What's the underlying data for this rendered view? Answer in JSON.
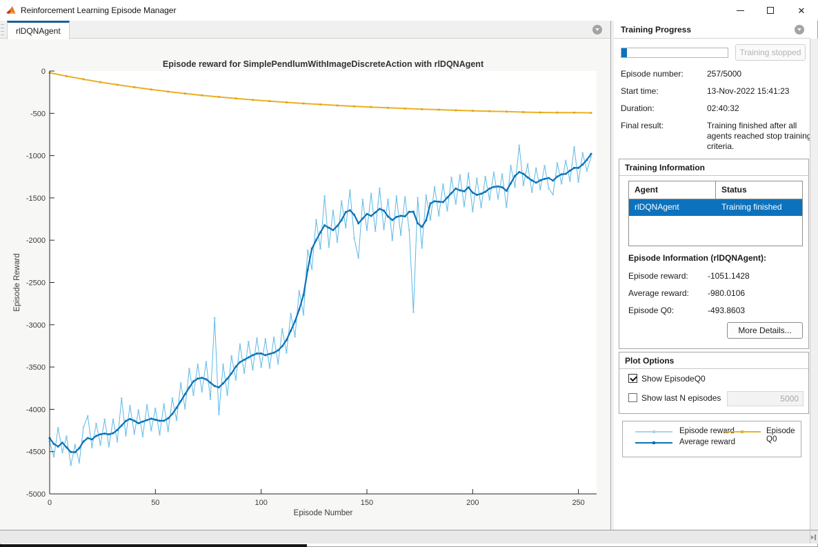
{
  "window": {
    "title": "Reinforcement Learning Episode Manager"
  },
  "tab": {
    "label": "rlDQNAgent"
  },
  "right_panel": {
    "header": "Training Progress",
    "progress": {
      "value": 257,
      "max": 5000
    },
    "stop_button": "Training stopped",
    "info_rows": [
      {
        "label": "Episode number:",
        "value": "257/5000"
      },
      {
        "label": "Start time:",
        "value": "13-Nov-2022 15:41:23"
      },
      {
        "label": "Duration:",
        "value": "02:40:32"
      },
      {
        "label": "Final result:",
        "value": "Training finished after all agents reached stop training criteria."
      }
    ],
    "training_information": {
      "title": "Training Information",
      "table": {
        "headers": [
          "Agent",
          "Status"
        ],
        "rows": [
          [
            "rlDQNAgent",
            "Training finished"
          ]
        ]
      },
      "episode_info_title": "Episode Information (rlDQNAgent):",
      "stats": [
        {
          "label": "Episode reward:",
          "value": "-1051.1428"
        },
        {
          "label": "Average reward:",
          "value": "-980.0106"
        },
        {
          "label": "Episode Q0:",
          "value": "-493.8603"
        }
      ],
      "more_details_button": "More Details..."
    },
    "plot_options": {
      "title": "Plot Options",
      "show_episode_q0": {
        "label": "Show EpisodeQ0",
        "checked": true
      },
      "show_last_n": {
        "label": "Show last N episodes",
        "checked": false,
        "value": "5000"
      }
    },
    "legend": [
      {
        "label": "Episode reward",
        "color": "#A9D5EF"
      },
      {
        "label": "Average reward",
        "color": "#0B72B5"
      },
      {
        "label": "Episode Q0",
        "color": "#EBB123"
      }
    ]
  },
  "chart_data": {
    "type": "line",
    "title": "Episode reward for SimplePendlumWithImageDiscreteAction with rlDQNAgent",
    "xlabel": "Episode Number",
    "ylabel": "Episode Reward",
    "xlim": [
      0,
      258.6
    ],
    "ylim": [
      -5000,
      0
    ],
    "x_ticks": [
      0,
      50,
      100,
      150,
      200,
      250
    ],
    "y_ticks": [
      0,
      -500,
      -1000,
      -1500,
      -2000,
      -2500,
      -3000,
      -3500,
      -4000,
      -4500,
      -5000
    ],
    "grid": false,
    "legend_position": "external-right-panel",
    "series": [
      {
        "id": "episode_reward",
        "name": "Episode reward",
        "color": "#5BB7E5",
        "marker": "#94D2F1",
        "width": 1,
        "marker_size": 2.6,
        "x_start": 0,
        "x_step": 2,
        "values": [
          -4380,
          -4560,
          -4220,
          -4510,
          -4320,
          -4660,
          -4420,
          -4630,
          -4210,
          -4080,
          -4450,
          -4170,
          -4420,
          -4120,
          -4440,
          -4120,
          -4380,
          -3870,
          -4310,
          -3960,
          -4290,
          -4010,
          -4320,
          -3950,
          -4250,
          -3990,
          -4300,
          -3940,
          -4260,
          -3870,
          -4130,
          -3690,
          -3990,
          -3520,
          -3830,
          -3470,
          -3790,
          -3440,
          -3880,
          -2920,
          -4060,
          -3470,
          -3830,
          -3370,
          -3650,
          -3230,
          -3570,
          -3200,
          -3530,
          -3160,
          -3500,
          -3170,
          -3510,
          -3150,
          -3460,
          -3050,
          -3330,
          -2870,
          -3140,
          -2600,
          -2880,
          -2120,
          -2340,
          -1760,
          -2100,
          -1480,
          -2080,
          -1650,
          -2020,
          -1540,
          -1850,
          -1410,
          -1980,
          -2210,
          -1520,
          -1880,
          -1450,
          -1890,
          -1390,
          -1870,
          -1520,
          -2000,
          -1480,
          -1940,
          -1490,
          -1880,
          -2850,
          -1500,
          -2090,
          -1470,
          -1760,
          -1370,
          -1710,
          -1340,
          -1650,
          -1260,
          -1570,
          -1230,
          -1600,
          -1210,
          -1660,
          -1270,
          -1610,
          -1250,
          -1520,
          -1200,
          -1510,
          -1220,
          -1610,
          -1120,
          -1370,
          -880,
          -1350,
          -1100,
          -1430,
          -1150,
          -1400,
          -1120,
          -1390,
          -1460,
          -1090,
          -1330,
          -1060,
          -1300,
          -900,
          -1310,
          -970,
          -1180,
          -1010
        ]
      },
      {
        "id": "average_reward",
        "name": "Average reward",
        "color": "#0B72B5",
        "marker": "#0B72B5",
        "width": 2.2,
        "marker_size": 2.8,
        "x_start": 0,
        "x_step": 2,
        "values": [
          -4340,
          -4410,
          -4440,
          -4395,
          -4450,
          -4505,
          -4507,
          -4460,
          -4380,
          -4340,
          -4355,
          -4315,
          -4295,
          -4287,
          -4296,
          -4282,
          -4245,
          -4192,
          -4137,
          -4115,
          -4135,
          -4165,
          -4145,
          -4127,
          -4110,
          -4123,
          -4135,
          -4135,
          -4108,
          -4055,
          -3982,
          -3904,
          -3821,
          -3743,
          -3670,
          -3637,
          -3628,
          -3645,
          -3685,
          -3725,
          -3740,
          -3693,
          -3638,
          -3575,
          -3495,
          -3441,
          -3414,
          -3387,
          -3360,
          -3340,
          -3340,
          -3360,
          -3345,
          -3330,
          -3303,
          -3253,
          -3180,
          -3070,
          -2960,
          -2820,
          -2650,
          -2350,
          -2100,
          -2000,
          -1908,
          -1825,
          -1853,
          -1880,
          -1833,
          -1762,
          -1668,
          -1647,
          -1700,
          -1800,
          -1745,
          -1690,
          -1713,
          -1672,
          -1630,
          -1650,
          -1720,
          -1762,
          -1725,
          -1712,
          -1718,
          -1665,
          -1664,
          -1800,
          -1843,
          -1765,
          -1565,
          -1540,
          -1545,
          -1550,
          -1497,
          -1443,
          -1390,
          -1410,
          -1422,
          -1375,
          -1438,
          -1464,
          -1451,
          -1427,
          -1390,
          -1370,
          -1365,
          -1375,
          -1415,
          -1328,
          -1240,
          -1195,
          -1215,
          -1258,
          -1293,
          -1320,
          -1293,
          -1275,
          -1265,
          -1295,
          -1248,
          -1222,
          -1215,
          -1178,
          -1145,
          -1145,
          -1105,
          -1050,
          -980
        ]
      },
      {
        "id": "episode_q0",
        "name": "Episode Q0",
        "color": "#EBAF23",
        "marker": "#DFA31A",
        "width": 2,
        "marker_size": 2.8,
        "x_start": 0,
        "x_step": 8,
        "values": [
          -20,
          -60,
          -97,
          -131,
          -162,
          -191,
          -218,
          -243,
          -266,
          -287,
          -306,
          -324,
          -341,
          -356,
          -370,
          -383,
          -395,
          -407,
          -417,
          -426,
          -435,
          -443,
          -451,
          -457,
          -464,
          -470,
          -475,
          -480,
          -485,
          -489,
          -491,
          -492,
          -494
        ]
      }
    ]
  }
}
